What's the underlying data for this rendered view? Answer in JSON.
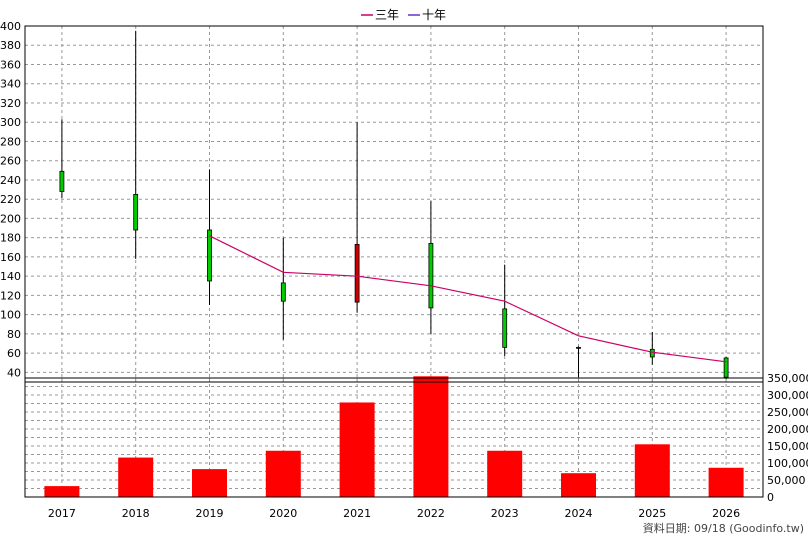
{
  "legend": {
    "items": [
      {
        "label": "三年",
        "color": "#cc0066"
      },
      {
        "label": "十年",
        "color": "#6633cc"
      }
    ]
  },
  "source_note": "資料日期: 09/18  (Goodinfo.tw)",
  "chart_data": [
    {
      "type": "candlestick",
      "title": "",
      "categories": [
        "2017",
        "2018",
        "2019",
        "2020",
        "2021",
        "2022",
        "2023",
        "2024",
        "2025",
        "2026"
      ],
      "ylim": [
        30,
        400
      ],
      "yticks": [
        40,
        60,
        80,
        100,
        120,
        140,
        160,
        180,
        200,
        220,
        240,
        260,
        280,
        300,
        320,
        340,
        360,
        380,
        400
      ],
      "grid": true,
      "candles": [
        {
          "x": "2017",
          "open": 228,
          "high": 303,
          "low": 221,
          "close": 249
        },
        {
          "x": "2018",
          "open": 188,
          "high": 395,
          "low": 158,
          "close": 225
        },
        {
          "x": "2019",
          "open": 135,
          "high": 251,
          "low": 110,
          "close": 188
        },
        {
          "x": "2020",
          "open": 114,
          "high": 180,
          "low": 74,
          "close": 133
        },
        {
          "x": "2021",
          "open": 113,
          "high": 300,
          "low": 102,
          "close": 173
        },
        {
          "x": "2022",
          "open": 107,
          "high": 218,
          "low": 80,
          "close": 174
        },
        {
          "x": "2023",
          "open": 66,
          "high": 152,
          "low": 57,
          "close": 106
        },
        {
          "x": "2024",
          "open": 65,
          "high": 67,
          "low": 35,
          "close": 66
        },
        {
          "x": "2025",
          "open": 56,
          "high": 82,
          "low": 48,
          "close": 64
        },
        {
          "x": "2026",
          "open": 35,
          "high": 56,
          "low": 33,
          "close": 55
        }
      ],
      "series": [
        {
          "name": "三年",
          "color": "#cc0066",
          "x": [
            "2019",
            "2020",
            "2021",
            "2022",
            "2023",
            "2024",
            "2025",
            "2026"
          ],
          "values": [
            182,
            144,
            140,
            130,
            114,
            78,
            61,
            51
          ]
        }
      ]
    },
    {
      "type": "bar",
      "categories": [
        "2017",
        "2018",
        "2019",
        "2020",
        "2021",
        "2022",
        "2023",
        "2024",
        "2025",
        "2026"
      ],
      "values": [
        32000,
        116000,
        82000,
        136000,
        278000,
        355000,
        136000,
        70000,
        155000,
        86000
      ],
      "ylim": [
        0,
        350000
      ],
      "yticks": [
        "0",
        "50,000",
        "100,000",
        "150,000",
        "200,000",
        "250,000",
        "300,000",
        "350,000"
      ],
      "bar_color": "#ff0000",
      "grid": true
    }
  ]
}
